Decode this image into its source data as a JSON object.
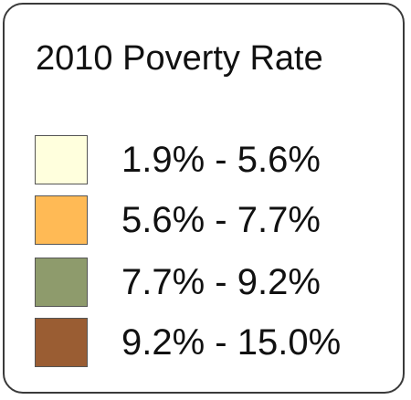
{
  "legend": {
    "title": "2010 Poverty Rate",
    "classes": [
      {
        "label": "1.9% - 5.6%",
        "color": "#FFFFDD"
      },
      {
        "label": "5.6% - 7.7%",
        "color": "#FFBA55"
      },
      {
        "label": "7.7% - 9.2%",
        "color": "#8E9B6C"
      },
      {
        "label": "9.2% - 15.0%",
        "color": "#9A5D33"
      }
    ]
  }
}
